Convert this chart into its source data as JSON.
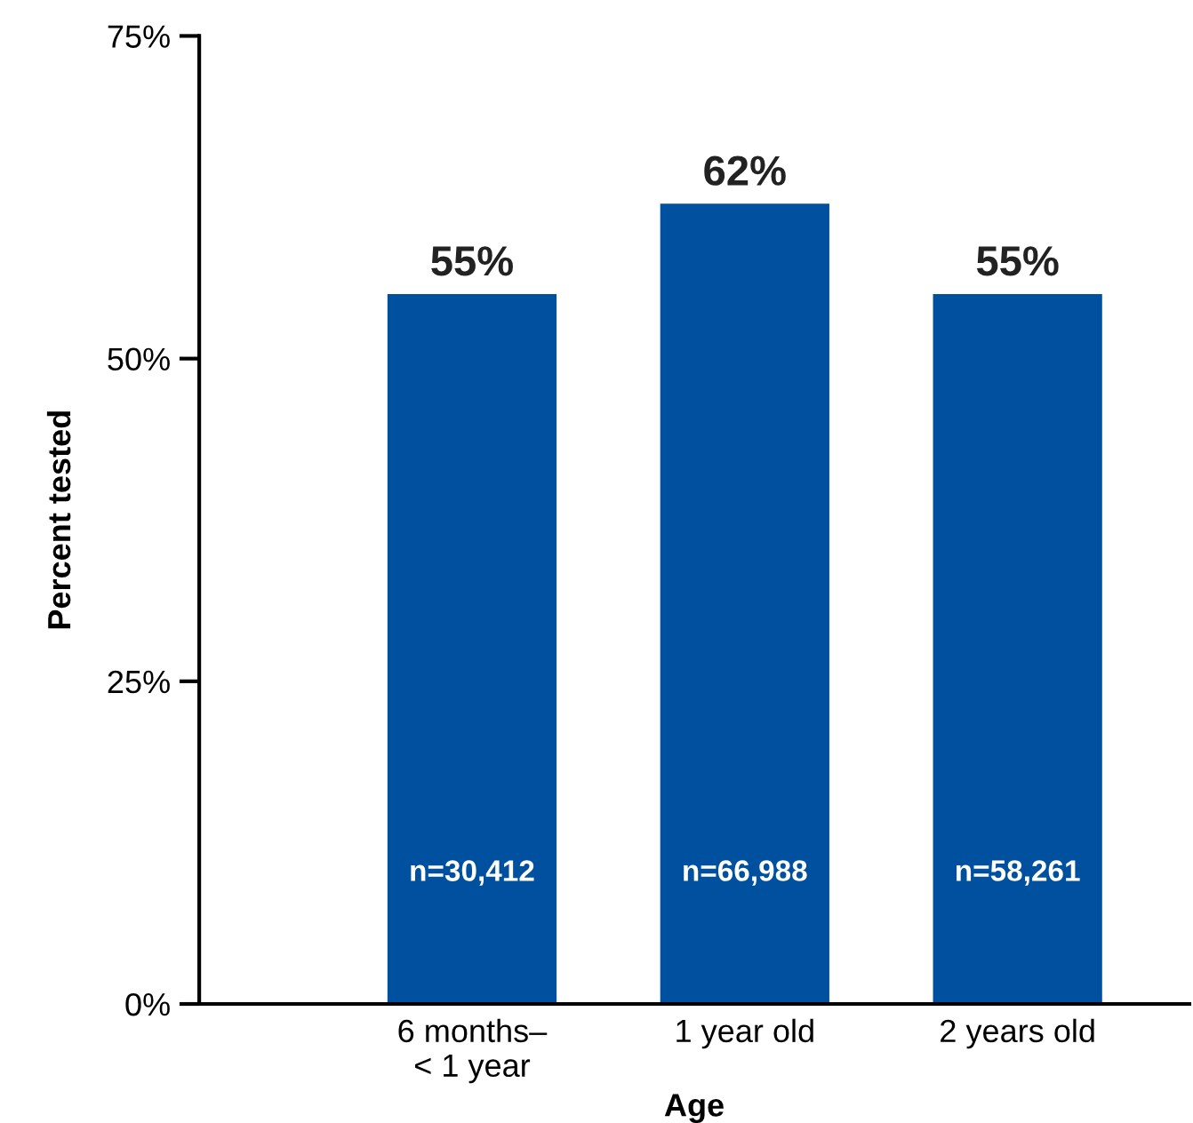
{
  "chart_data": {
    "type": "bar",
    "xlabel": "Age",
    "ylabel": "Percent tested",
    "categories": [
      "6 months–\n< 1 year",
      "1 year old",
      "2 years old"
    ],
    "values": [
      55,
      62,
      55
    ],
    "color": "#0050a0",
    "value_labels": [
      "55%",
      "62%",
      "55%"
    ],
    "ylim": [
      0,
      75
    ],
    "yticks": [
      {
        "value": 0,
        "label": "0%"
      },
      {
        "value": 25,
        "label": "25%"
      },
      {
        "value": 50,
        "label": "50%"
      },
      {
        "value": 75,
        "label": "75%"
      }
    ],
    "grid": false,
    "legend": false,
    "annotations": [
      "n=30,412",
      "n=66,988",
      "n=58,261"
    ]
  }
}
